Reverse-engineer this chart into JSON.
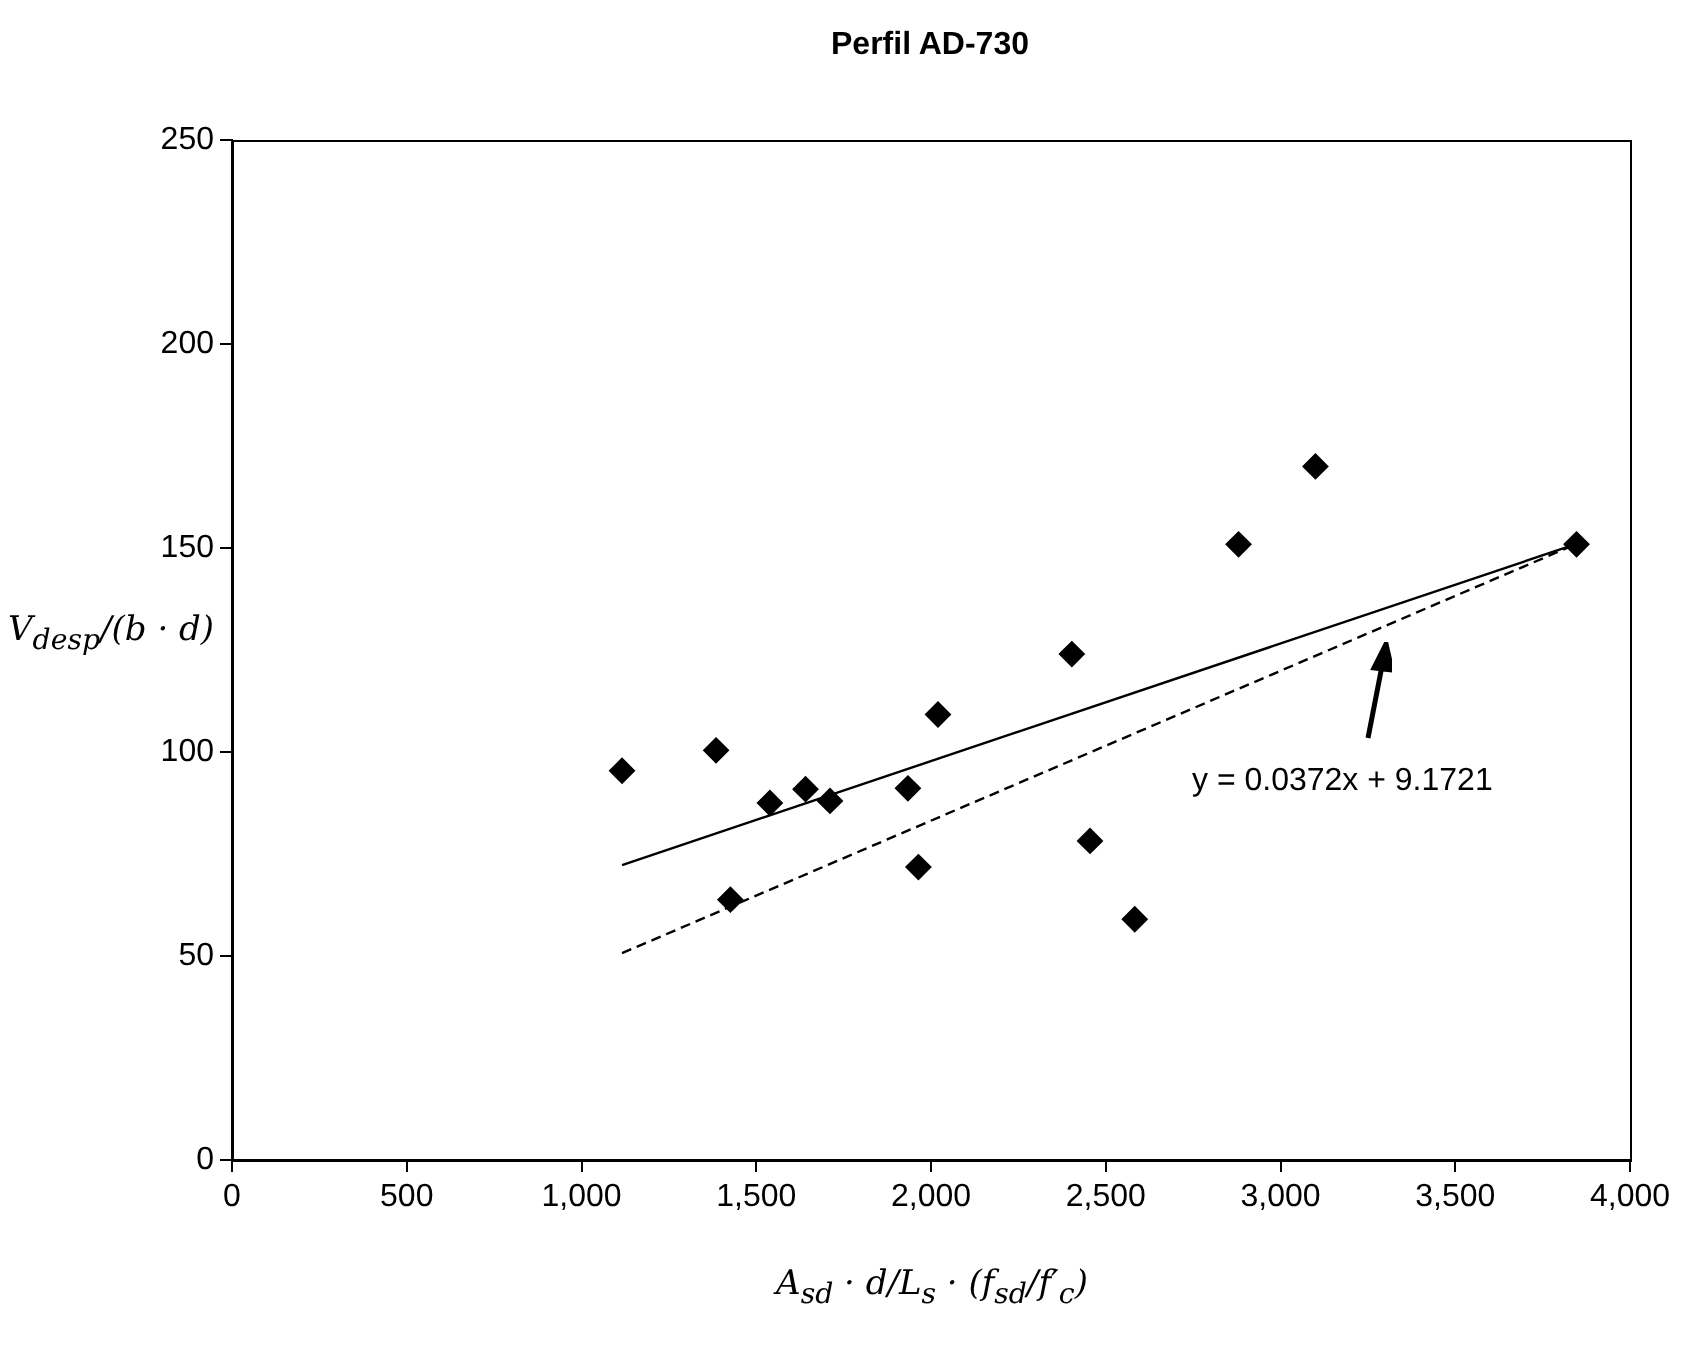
{
  "chart_data": {
    "type": "scatter",
    "title": "Perfil AD-730",
    "xlabel": "A$_{sd}$ · d/L$_{s}$ · (f$_{sd}$/f′$_{c}$)",
    "ylabel": "V$_{desp}$/(b · d)",
    "xlim": [
      0,
      4000
    ],
    "xticks": [
      0,
      500,
      {
        "value": 1000,
        "label": "1,000"
      },
      {
        "value": 1500,
        "label": "1,500"
      },
      {
        "value": 2000,
        "label": "2,000"
      },
      {
        "value": 2500,
        "label": "2,500"
      },
      {
        "value": 3000,
        "label": "3,000"
      },
      {
        "value": 3500,
        "label": "3,500"
      },
      {
        "value": 4000,
        "label": "4,000"
      }
    ],
    "ylim": [
      0,
      250
    ],
    "yticks": [
      0,
      50,
      100,
      150,
      200,
      250
    ],
    "grid": false,
    "marker": "diamond",
    "series": [
      {
        "color": "#000000",
        "x": [
          1116,
          1385,
          1426,
          1539,
          1641,
          1711,
          2020,
          1934,
          1964,
          2455,
          2583,
          2403,
          2880,
          3100,
          3847
        ],
        "values": [
          95.4,
          100.4,
          63.8,
          87.5,
          90.9,
          88.0,
          109.2,
          91.1,
          71.8,
          78.2,
          59.0,
          124.0,
          150.9,
          170.0,
          150.9
        ]
      },
      {
        "type": "line",
        "color": "#000000",
        "marker": "none",
        "line_style": "solid",
        "x": [
          1116,
          3847
        ],
        "values": [
          72.3,
          151
        ]
      },
      {
        "type": "line",
        "color": "#000000",
        "marker": "none",
        "line_style": "dashed",
        "x": [
          1116,
          3847
        ],
        "values": [
          50.7,
          151
        ]
      }
    ],
    "annotations": [
      "y = 0.0372x + 9.1721"
    ]
  }
}
